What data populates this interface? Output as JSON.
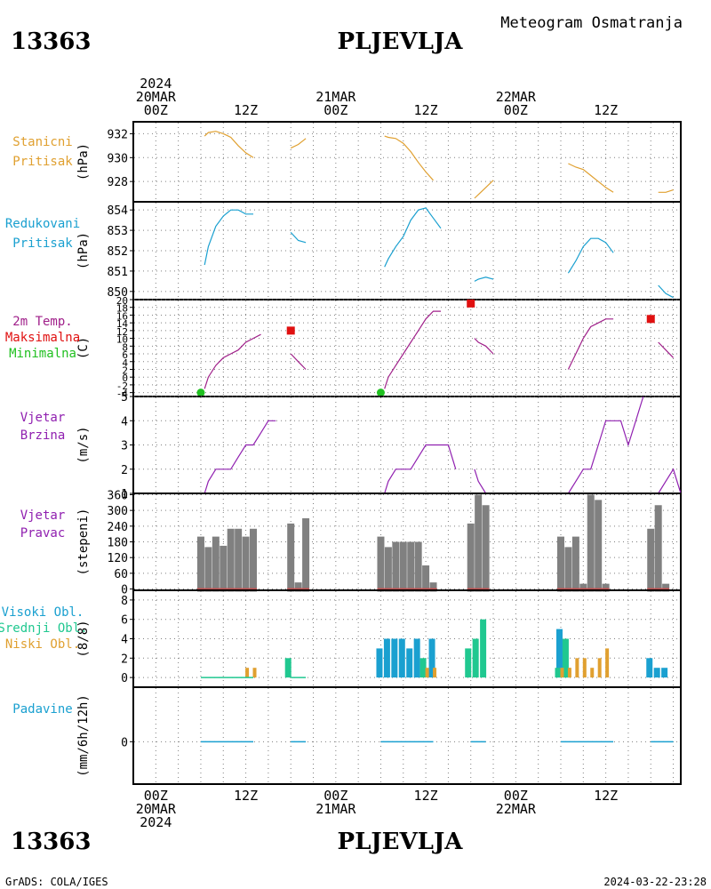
{
  "header": {
    "station_id": "13363",
    "station_name": "PLJEVLJA",
    "product": "Meteogram Osmatranja"
  },
  "footer": {
    "left": "GrADS: COLA/IGES",
    "right": "2024-03-22-23:28"
  },
  "time_axis": {
    "hours": [
      0,
      72
    ],
    "tick_every_h": 3,
    "top_labels": [
      {
        "h": 0,
        "lines": [
          "2024",
          "20MAR",
          "00Z"
        ]
      },
      {
        "h": 12,
        "lines": [
          "12Z"
        ]
      },
      {
        "h": 24,
        "lines": [
          "21MAR",
          "00Z"
        ]
      },
      {
        "h": 36,
        "lines": [
          "12Z"
        ]
      },
      {
        "h": 48,
        "lines": [
          "22MAR",
          "00Z"
        ]
      },
      {
        "h": 60,
        "lines": [
          "12Z"
        ]
      }
    ],
    "bottom_labels": [
      {
        "h": 0,
        "lines": [
          "00Z",
          "20MAR",
          "2024"
        ]
      },
      {
        "h": 12,
        "lines": [
          "12Z"
        ]
      },
      {
        "h": 24,
        "lines": [
          "00Z",
          "21MAR"
        ]
      },
      {
        "h": 36,
        "lines": [
          "12Z"
        ]
      },
      {
        "h": 48,
        "lines": [
          "00Z",
          "22MAR"
        ]
      },
      {
        "h": 60,
        "lines": [
          "12Z"
        ]
      }
    ]
  },
  "colors": {
    "pressure": "#e0a030",
    "reduced": "#1aa0d0",
    "temp": "#a0208a",
    "tmax": "#e01010",
    "tmin": "#20c020",
    "wind": "#9020b0",
    "dir_bar": "#808080",
    "dir_base": "#c05050",
    "high_cloud": "#1aa0d0",
    "mid_cloud": "#20c890",
    "low_cloud": "#e0a030",
    "precip": "#1aa0d0",
    "grid": "#7f7f7f"
  },
  "chart_data": [
    {
      "type": "line",
      "id": "station_pressure",
      "label_lines": [
        "Stanicni",
        "Pritisak"
      ],
      "unit": "(hPa)",
      "ylim": [
        926.3,
        933
      ],
      "yticks": [
        928,
        930,
        932
      ],
      "segments": [
        [
          [
            6.5,
            931.8
          ],
          [
            7,
            932.1
          ],
          [
            8,
            932.2
          ],
          [
            9,
            932.0
          ],
          [
            10,
            931.7
          ],
          [
            11,
            931.0
          ],
          [
            12,
            930.4
          ],
          [
            13,
            930.0
          ]
        ],
        [
          [
            18,
            930.8
          ],
          [
            19,
            931.1
          ],
          [
            20,
            931.6
          ]
        ],
        [
          [
            30.5,
            931.8
          ],
          [
            31,
            931.7
          ],
          [
            32,
            931.6
          ],
          [
            33,
            931.2
          ],
          [
            34,
            930.5
          ],
          [
            35,
            929.6
          ],
          [
            36,
            928.8
          ],
          [
            37,
            928.1
          ]
        ],
        [
          [
            42.5,
            926.6
          ],
          [
            43,
            926.9
          ],
          [
            44,
            927.5
          ],
          [
            45,
            928.1
          ]
        ],
        [
          [
            55,
            929.5
          ],
          [
            56,
            929.2
          ],
          [
            57,
            929.0
          ],
          [
            58,
            928.5
          ],
          [
            59,
            928.0
          ],
          [
            60,
            927.5
          ],
          [
            61,
            927.1
          ]
        ],
        [
          [
            67,
            927.1
          ],
          [
            68,
            927.1
          ],
          [
            69,
            927.3
          ]
        ]
      ]
    },
    {
      "type": "line",
      "id": "reduced_pressure",
      "label_lines": [
        "Redukovani",
        "Pritisak"
      ],
      "unit": "(hPa)",
      "ylim": [
        849.6,
        854.4
      ],
      "yticks": [
        850,
        851,
        852,
        853,
        854
      ],
      "segments": [
        [
          [
            6.5,
            851.3
          ],
          [
            7,
            852.2
          ],
          [
            8,
            853.2
          ],
          [
            9,
            853.7
          ],
          [
            10,
            854.0
          ],
          [
            11,
            854.0
          ],
          [
            12,
            853.8
          ],
          [
            13,
            853.8
          ]
        ],
        [
          [
            18,
            852.9
          ],
          [
            19,
            852.5
          ],
          [
            20,
            852.4
          ]
        ],
        [
          [
            30.5,
            851.2
          ],
          [
            31,
            851.6
          ],
          [
            32,
            852.2
          ],
          [
            33,
            852.7
          ],
          [
            34,
            853.5
          ],
          [
            35,
            854.0
          ],
          [
            36,
            854.1
          ],
          [
            37,
            853.6
          ],
          [
            38,
            853.1
          ]
        ],
        [
          [
            42.5,
            850.5
          ],
          [
            43,
            850.6
          ],
          [
            44,
            850.7
          ],
          [
            45,
            850.6
          ]
        ],
        [
          [
            55,
            850.9
          ],
          [
            56,
            851.5
          ],
          [
            57,
            852.2
          ],
          [
            58,
            852.6
          ],
          [
            59,
            852.6
          ],
          [
            60,
            852.4
          ],
          [
            61,
            851.9
          ]
        ],
        [
          [
            67,
            850.3
          ],
          [
            68,
            849.9
          ],
          [
            69,
            849.7
          ]
        ]
      ]
    },
    {
      "type": "line",
      "id": "temperature",
      "label_lines": [
        "2m Temp.",
        "Maksimalna",
        "Minimalna"
      ],
      "label_colors": [
        "temp",
        "tmax",
        "tmin"
      ],
      "unit": "(C)",
      "ylim": [
        -5,
        20
      ],
      "yticks": [
        -4,
        -2,
        0,
        2,
        4,
        6,
        8,
        10,
        12,
        14,
        16,
        18,
        20
      ],
      "segments": [
        [
          [
            6.5,
            -3
          ],
          [
            7,
            0
          ],
          [
            8,
            3
          ],
          [
            9,
            5
          ],
          [
            10,
            6
          ],
          [
            11,
            7
          ],
          [
            12,
            9
          ],
          [
            13,
            10
          ],
          [
            14,
            11
          ]
        ],
        [
          [
            18,
            6
          ],
          [
            19,
            4
          ],
          [
            20,
            2
          ]
        ],
        [
          [
            30.5,
            -3
          ],
          [
            31,
            0
          ],
          [
            32,
            3
          ],
          [
            33,
            6
          ],
          [
            34,
            9
          ],
          [
            35,
            12
          ],
          [
            36,
            15
          ],
          [
            37,
            17
          ],
          [
            38,
            17
          ]
        ],
        [
          [
            42.5,
            10
          ],
          [
            43,
            9
          ],
          [
            44,
            8
          ],
          [
            45,
            6
          ]
        ],
        [
          [
            55,
            2
          ],
          [
            56,
            6
          ],
          [
            57,
            10
          ],
          [
            58,
            13
          ],
          [
            59,
            14
          ],
          [
            60,
            15
          ],
          [
            61,
            15
          ]
        ],
        [
          [
            67,
            9
          ],
          [
            68,
            7
          ],
          [
            69,
            5
          ]
        ]
      ],
      "tmax_points": [
        [
          18,
          12
        ],
        [
          42,
          19
        ],
        [
          66,
          15
        ]
      ],
      "tmin_points": [
        [
          6,
          -4
        ],
        [
          30,
          -4
        ]
      ]
    },
    {
      "type": "line",
      "id": "wind_speed",
      "label_lines": [
        "Vjetar",
        "Brzina"
      ],
      "unit": "(m/s)",
      "ylim": [
        1,
        5
      ],
      "yticks": [
        1,
        2,
        3,
        4,
        5
      ],
      "segments": [
        [
          [
            6.5,
            1
          ],
          [
            7,
            1.5
          ],
          [
            8,
            2
          ],
          [
            9,
            2
          ],
          [
            10,
            2
          ],
          [
            11,
            2.5
          ],
          [
            12,
            3
          ],
          [
            13,
            3
          ],
          [
            14,
            3.5
          ],
          [
            15,
            4
          ],
          [
            16,
            4
          ]
        ],
        [
          [
            18,
            1
          ],
          [
            19,
            1
          ],
          [
            20,
            1
          ]
        ],
        [
          [
            30.5,
            1
          ],
          [
            31,
            1.5
          ],
          [
            32,
            2
          ],
          [
            33,
            2
          ],
          [
            34,
            2
          ],
          [
            35,
            2.5
          ],
          [
            36,
            3
          ],
          [
            37,
            3
          ],
          [
            38,
            3
          ],
          [
            39,
            3
          ],
          [
            40,
            2
          ]
        ],
        [
          [
            42.5,
            2
          ],
          [
            43,
            1.5
          ],
          [
            44,
            1
          ],
          [
            45,
            1
          ]
        ],
        [
          [
            55,
            1
          ],
          [
            56,
            1.5
          ],
          [
            57,
            2
          ],
          [
            58,
            2
          ],
          [
            59,
            3
          ],
          [
            60,
            4
          ],
          [
            61,
            4
          ],
          [
            62,
            4
          ],
          [
            63,
            3
          ],
          [
            64,
            4
          ],
          [
            65,
            5
          ]
        ],
        [
          [
            67,
            1
          ],
          [
            68,
            1.5
          ],
          [
            69,
            2
          ],
          [
            70,
            1
          ]
        ]
      ]
    },
    {
      "type": "bar",
      "id": "wind_direction",
      "label_lines": [
        "Vjetar",
        "Pravac"
      ],
      "unit": "(stepeni)",
      "ylim": [
        -5,
        365
      ],
      "yticks": [
        0,
        60,
        120,
        180,
        240,
        300,
        360
      ],
      "bars": [
        [
          6,
          200
        ],
        [
          7,
          160
        ],
        [
          8,
          200
        ],
        [
          9,
          165
        ],
        [
          10,
          230
        ],
        [
          11,
          230
        ],
        [
          12,
          200
        ],
        [
          13,
          230
        ],
        [
          18,
          250
        ],
        [
          19,
          25
        ],
        [
          20,
          270
        ],
        [
          30,
          200
        ],
        [
          31,
          160
        ],
        [
          32,
          180
        ],
        [
          33,
          180
        ],
        [
          34,
          180
        ],
        [
          35,
          180
        ],
        [
          36,
          90
        ],
        [
          37,
          25
        ],
        [
          42,
          250
        ],
        [
          43,
          360
        ],
        [
          44,
          320
        ],
        [
          54,
          200
        ],
        [
          55,
          160
        ],
        [
          56,
          200
        ],
        [
          57,
          20
        ],
        [
          58,
          360
        ],
        [
          59,
          340
        ],
        [
          60,
          20
        ],
        [
          66,
          230
        ],
        [
          67,
          320
        ],
        [
          68,
          20
        ]
      ]
    },
    {
      "type": "bar",
      "id": "cloud_cover",
      "label_lines": [
        "Visoki Obl.",
        "Srednji Obl.",
        "Niski Obl."
      ],
      "label_colors": [
        "high_cloud",
        "mid_cloud",
        "low_cloud"
      ],
      "unit": "(8/8)",
      "ylim": [
        -1,
        9
      ],
      "yticks": [
        0,
        2,
        4,
        6,
        8
      ],
      "series": [
        {
          "name": "Visoki Obl.",
          "color": "high_cloud",
          "bars": [
            [
              30,
              3
            ],
            [
              31,
              4
            ],
            [
              32,
              4
            ],
            [
              33,
              4
            ],
            [
              34,
              3
            ],
            [
              35,
              4
            ],
            [
              37,
              4
            ],
            [
              54,
              5
            ],
            [
              55,
              1
            ],
            [
              66,
              2
            ],
            [
              67,
              1
            ],
            [
              68,
              1
            ]
          ]
        },
        {
          "name": "Srednji Obl.",
          "color": "mid_cloud",
          "bars": [
            [
              18,
              2
            ],
            [
              36,
              2
            ],
            [
              42,
              3
            ],
            [
              43,
              4
            ],
            [
              44,
              6
            ],
            [
              54,
              1
            ],
            [
              55,
              4
            ]
          ]
        },
        {
          "name": "Niski Obl.",
          "color": "low_cloud",
          "bars": [
            [
              12,
              1
            ],
            [
              13,
              1
            ],
            [
              36,
              1
            ],
            [
              37,
              1
            ],
            [
              54,
              1
            ],
            [
              55,
              1
            ],
            [
              56,
              2
            ],
            [
              57,
              2
            ],
            [
              58,
              1
            ],
            [
              59,
              2
            ],
            [
              60,
              3
            ]
          ]
        }
      ],
      "trace_ranges": [
        [
          6,
          13
        ],
        [
          18,
          20
        ]
      ]
    },
    {
      "type": "bar",
      "id": "precipitation",
      "label_lines": [
        "Padavine"
      ],
      "unit": "(mm/6h/12h)",
      "ylim": [
        -3.5,
        4.5
      ],
      "yticks": [
        0
      ],
      "values": [],
      "trace_ranges": [
        [
          6,
          13
        ],
        [
          18,
          20
        ],
        [
          30,
          37
        ],
        [
          42,
          44
        ],
        [
          54,
          61
        ],
        [
          66,
          69
        ]
      ]
    }
  ]
}
